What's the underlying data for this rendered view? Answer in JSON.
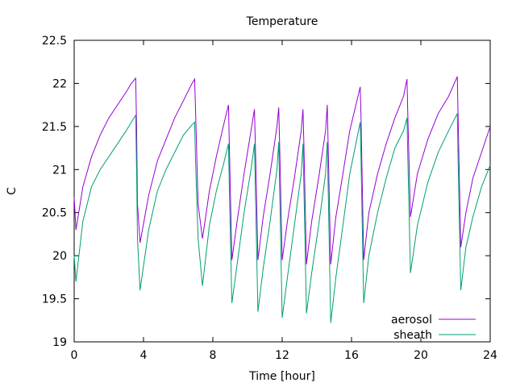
{
  "chart_data": {
    "type": "line",
    "title": "Temperature",
    "xlabel": "Time [hour]",
    "ylabel": "C",
    "xlim": [
      0,
      24
    ],
    "ylim": [
      19,
      22.5
    ],
    "xticks": [
      0,
      4,
      8,
      12,
      16,
      20,
      24
    ],
    "yticks": [
      19,
      19.5,
      20,
      20.5,
      21,
      21.5,
      22,
      22.5
    ],
    "xtick_labels": [
      "0",
      "4",
      "8",
      "12",
      "16",
      "20",
      "24"
    ],
    "ytick_labels": [
      "19",
      "19.5",
      "20",
      "20.5",
      "21",
      "21.5",
      "22",
      "22.5"
    ],
    "grid": false,
    "legend_position": "bottom-right",
    "series": [
      {
        "name": "aerosol",
        "color": "#9400d3",
        "x": [
          0.0,
          0.1,
          0.5,
          1.0,
          1.5,
          2.0,
          2.5,
          3.0,
          3.3,
          3.55,
          3.6,
          3.65,
          3.8,
          4.3,
          4.8,
          5.3,
          5.8,
          6.3,
          6.8,
          6.95,
          7.0,
          7.15,
          7.4,
          7.8,
          8.2,
          8.6,
          8.9,
          8.95,
          9.1,
          9.4,
          9.8,
          10.2,
          10.4,
          10.45,
          10.6,
          10.9,
          11.3,
          11.7,
          11.8,
          11.85,
          12.0,
          12.3,
          12.7,
          13.1,
          13.2,
          13.25,
          13.4,
          13.7,
          14.1,
          14.5,
          14.6,
          14.65,
          14.8,
          15.1,
          15.5,
          15.9,
          16.5,
          16.55,
          16.7,
          17.0,
          17.5,
          18.0,
          18.5,
          19.0,
          19.2,
          19.25,
          19.4,
          19.8,
          20.4,
          21.0,
          21.6,
          22.1,
          22.15,
          22.3,
          22.6,
          23.0,
          23.5,
          24.0
        ],
        "values": [
          20.68,
          20.3,
          20.8,
          21.15,
          21.4,
          21.6,
          21.75,
          21.9,
          22.0,
          22.06,
          21.5,
          20.6,
          20.15,
          20.7,
          21.1,
          21.35,
          21.6,
          21.8,
          22.0,
          22.05,
          21.7,
          20.6,
          20.2,
          20.75,
          21.15,
          21.5,
          21.75,
          21.3,
          19.95,
          20.4,
          20.95,
          21.45,
          21.7,
          21.3,
          19.95,
          20.45,
          20.95,
          21.5,
          21.72,
          21.3,
          19.95,
          20.4,
          20.9,
          21.45,
          21.7,
          21.3,
          19.9,
          20.4,
          20.9,
          21.45,
          21.75,
          21.3,
          19.9,
          20.45,
          20.95,
          21.45,
          21.96,
          21.6,
          19.95,
          20.5,
          20.95,
          21.3,
          21.6,
          21.85,
          22.05,
          21.6,
          20.45,
          20.95,
          21.35,
          21.65,
          21.85,
          22.08,
          21.6,
          20.1,
          20.5,
          20.9,
          21.2,
          21.5
        ]
      },
      {
        "name": "sheath",
        "color": "#009e73",
        "x": [
          0.0,
          0.1,
          0.5,
          1.0,
          1.5,
          2.0,
          2.5,
          3.0,
          3.3,
          3.55,
          3.6,
          3.65,
          3.8,
          4.3,
          4.8,
          5.3,
          5.8,
          6.3,
          6.8,
          6.95,
          7.0,
          7.15,
          7.4,
          7.8,
          8.2,
          8.6,
          8.9,
          8.95,
          9.1,
          9.4,
          9.8,
          10.2,
          10.4,
          10.45,
          10.6,
          10.9,
          11.3,
          11.7,
          11.8,
          11.85,
          12.0,
          12.3,
          12.7,
          13.1,
          13.2,
          13.25,
          13.4,
          13.7,
          14.1,
          14.5,
          14.6,
          14.65,
          14.8,
          15.1,
          15.5,
          15.9,
          16.5,
          16.55,
          16.7,
          17.0,
          17.5,
          18.0,
          18.5,
          19.0,
          19.2,
          19.25,
          19.4,
          19.8,
          20.4,
          21.0,
          21.6,
          22.1,
          22.15,
          22.3,
          22.6,
          23.0,
          23.5,
          24.0
        ],
        "values": [
          20.0,
          19.7,
          20.4,
          20.8,
          21.0,
          21.15,
          21.3,
          21.45,
          21.55,
          21.63,
          21.0,
          20.2,
          19.6,
          20.3,
          20.75,
          21.0,
          21.2,
          21.4,
          21.52,
          21.55,
          21.1,
          20.2,
          19.65,
          20.35,
          20.75,
          21.05,
          21.3,
          20.8,
          19.45,
          19.9,
          20.5,
          21.0,
          21.3,
          20.8,
          19.35,
          19.85,
          20.4,
          21.0,
          21.32,
          20.8,
          19.28,
          19.75,
          20.35,
          20.95,
          21.3,
          20.8,
          19.33,
          19.8,
          20.35,
          20.95,
          21.32,
          20.8,
          19.22,
          19.75,
          20.35,
          20.95,
          21.55,
          21.1,
          19.45,
          20.0,
          20.5,
          20.9,
          21.25,
          21.45,
          21.6,
          21.1,
          19.8,
          20.35,
          20.85,
          21.2,
          21.45,
          21.65,
          21.1,
          19.6,
          20.1,
          20.45,
          20.8,
          21.05
        ]
      }
    ]
  }
}
